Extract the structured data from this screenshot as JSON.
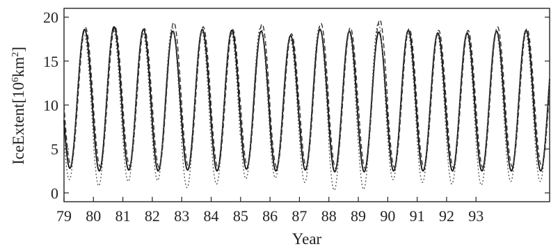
{
  "chart_data": {
    "type": "line",
    "title": "",
    "xlabel": "Year",
    "ylabel": "IceExtent[10⁶km²]",
    "ylabel_parts": {
      "main": "IceExtent[10",
      "exp1": "6",
      "mid": "km",
      "exp2": "2",
      "end": "]"
    },
    "x_ticks": [
      "79",
      "80",
      "81",
      "82",
      "83",
      "84",
      "85",
      "86",
      "87",
      "88",
      "89",
      "90",
      "91",
      "92",
      "93"
    ],
    "y_ticks": [
      0,
      5,
      10,
      15,
      20
    ],
    "xlim": [
      79,
      95.5
    ],
    "ylim": [
      -1,
      21
    ],
    "grid": false,
    "legend": "none",
    "series": [
      {
        "style": "solid",
        "color": "#111111",
        "annual_max": [
          18.6,
          18.9,
          18.6,
          18.4,
          18.6,
          18.5,
          18.4,
          17.9,
          18.6,
          18.4,
          18.3,
          18.5,
          18.2,
          18.2,
          18.4,
          18.5
        ],
        "annual_min": [
          2.8,
          2.5,
          2.6,
          2.5,
          2.6,
          2.5,
          2.7,
          2.5,
          2.6,
          2.4,
          2.4,
          2.5,
          2.5,
          2.5,
          2.5,
          2.5
        ]
      },
      {
        "style": "dashed",
        "color": "#333333",
        "annual_max": [
          18.8,
          18.9,
          18.7,
          19.4,
          18.9,
          18.6,
          19.2,
          18.1,
          19.3,
          18.8,
          19.7,
          18.7,
          18.5,
          18.5,
          18.9,
          18.7
        ],
        "annual_min": [
          3.2,
          3.0,
          3.1,
          2.9,
          3.0,
          2.9,
          3.1,
          2.9,
          3.0,
          2.8,
          2.8,
          2.9,
          2.9,
          2.9,
          2.9,
          3.0
        ]
      },
      {
        "style": "dotted",
        "color": "#555555",
        "annual_max": [
          18.1,
          18.5,
          18.2,
          18.8,
          18.4,
          18.2,
          18.9,
          17.6,
          18.9,
          18.4,
          19.3,
          18.2,
          18.0,
          18.1,
          18.4,
          18.2
        ],
        "annual_min": [
          1.5,
          0.8,
          1.3,
          1.4,
          0.6,
          1.0,
          1.6,
          1.7,
          1.2,
          0.3,
          0.4,
          1.5,
          1.2,
          1.0,
          0.9,
          1.3
        ]
      }
    ]
  }
}
